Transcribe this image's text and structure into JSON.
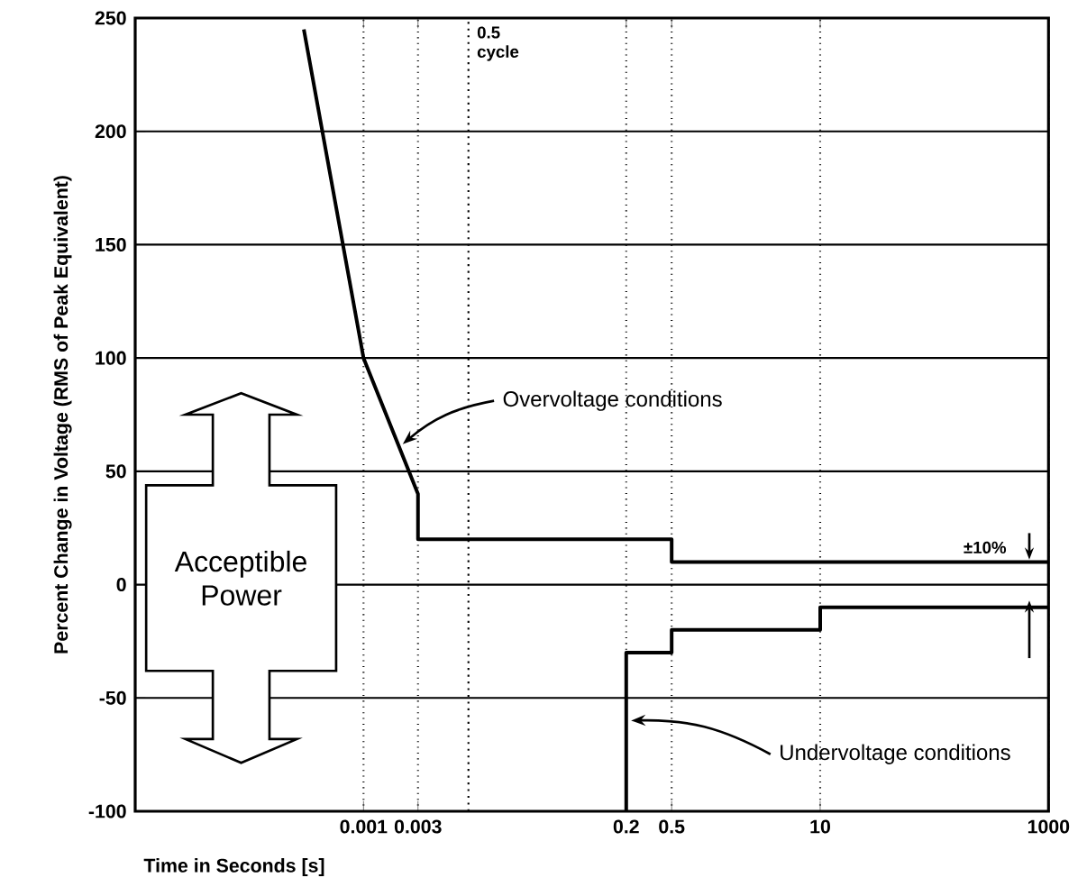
{
  "chart_data": {
    "type": "line",
    "xlabel": "Time in Seconds [s]",
    "ylabel": "Percent Change in Voltage (RMS of Peak Equivalent)",
    "log": "x",
    "xlim": [
      1e-05,
      1000
    ],
    "xticks": [
      0.001,
      0.003,
      0.2,
      0.5,
      10,
      1000
    ],
    "ylim": [
      -100,
      250
    ],
    "yticks": [
      -100,
      -50,
      0,
      50,
      100,
      150,
      200,
      250
    ],
    "grid": true,
    "series": [
      {
        "color": "#000000",
        "x": [
          0.0003,
          0.001,
          0.003,
          0.003,
          0.5,
          0.5,
          1000
        ],
        "values": [
          245,
          100,
          40,
          20,
          20,
          10,
          10
        ]
      },
      {
        "color": "#000000",
        "x": [
          0.2,
          0.2,
          0.5,
          0.5,
          10,
          10,
          1000
        ],
        "values": [
          -100,
          -30,
          -30,
          -20,
          -20,
          -10,
          -10
        ]
      }
    ],
    "ref_lines": [
      {
        "axis": "x",
        "value": 0.0083,
        "label": "0.5 cycle",
        "line_style": "dotted"
      }
    ],
    "annotations": [
      "Acceptible Power",
      {
        "text": "Overvoltage conditions",
        "x": 0.002,
        "y": 62
      },
      {
        "text": "Undervoltage conditions",
        "x": 0.2,
        "y": -60
      },
      {
        "text": "±10%",
        "x": 1000,
        "y": 10
      }
    ]
  }
}
